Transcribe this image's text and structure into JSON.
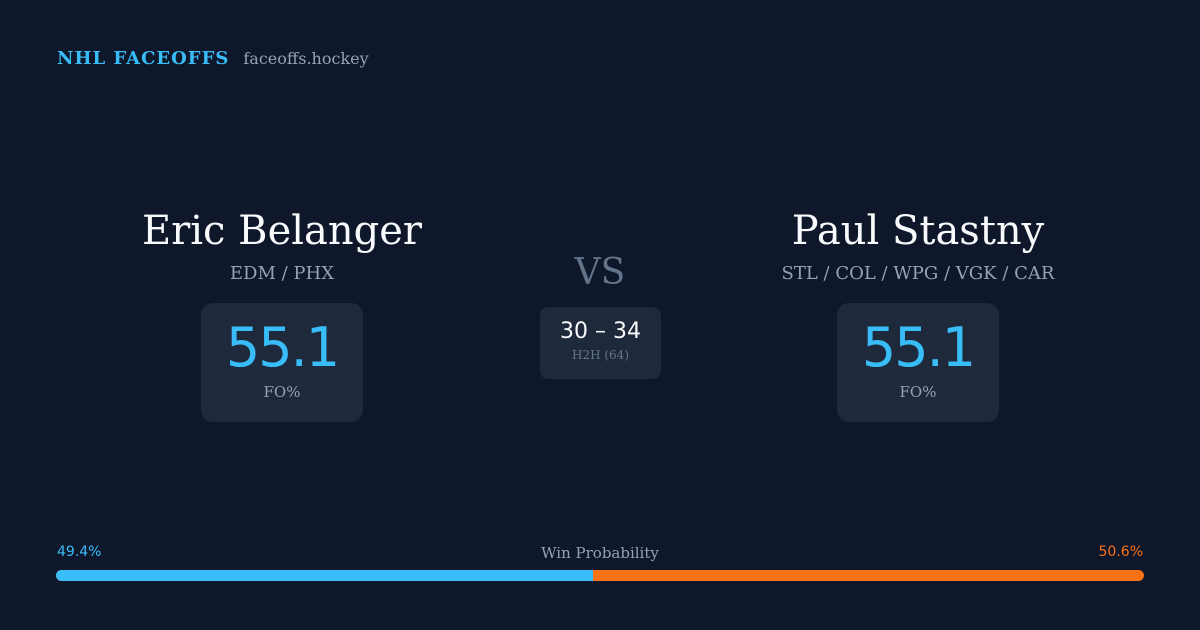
{
  "brand": {
    "name": "NHL FACEOFFS",
    "site": "faceoffs.hockey"
  },
  "player_left": {
    "name": "Eric Belanger",
    "teams": "EDM / PHX",
    "fo_value": "55.1",
    "fo_label": "FO%"
  },
  "player_right": {
    "name": "Paul Stastny",
    "teams": "STL / COL / WPG / VGK / CAR",
    "fo_value": "55.1",
    "fo_label": "FO%"
  },
  "vs": "VS",
  "h2h": {
    "score": "30 – 34",
    "label": "H2H (64)"
  },
  "win_probability": {
    "title": "Win Probability",
    "left_label": "49.4%",
    "right_label": "50.6%",
    "left_value": 49.4,
    "right_value": 50.6
  },
  "colors": {
    "background": "#0f172a",
    "card": "#1e293b",
    "accent_left": "#38bdf8",
    "accent_right": "#f97316",
    "muted": "#94a3b8"
  }
}
